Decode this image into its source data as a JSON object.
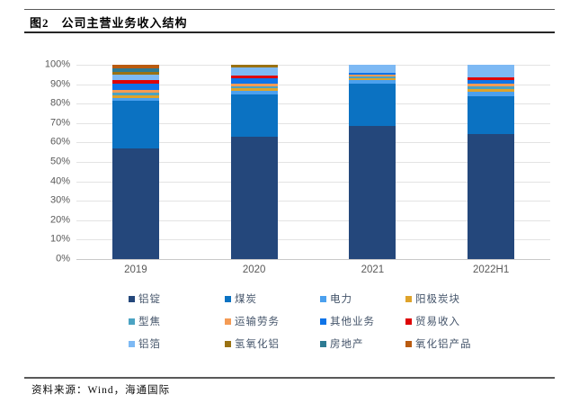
{
  "header": {
    "figure_label": "图2",
    "title": "公司主营业务收入结构"
  },
  "chart_data": {
    "type": "bar",
    "stacked": true,
    "title": "公司主营业务收入结构",
    "categories": [
      "2019",
      "2020",
      "2021",
      "2022H1"
    ],
    "series": [
      {
        "name": "铝锭",
        "color": "#24477B",
        "values": [
          57,
          63,
          68.5,
          64.5
        ]
      },
      {
        "name": "煤炭",
        "color": "#0B72C2",
        "values": [
          24.5,
          21.5,
          22,
          19.5
        ]
      },
      {
        "name": "电力",
        "color": "#4BA0EE",
        "values": [
          1.5,
          2,
          1.5,
          2
        ]
      },
      {
        "name": "阳极炭块",
        "color": "#DFA32B",
        "values": [
          1.5,
          1.5,
          1,
          1.5
        ]
      },
      {
        "name": "型焦",
        "color": "#4BA3C3",
        "values": [
          1,
          1,
          1,
          1.5
        ]
      },
      {
        "name": "运输劳务",
        "color": "#F49B55",
        "values": [
          1.5,
          1.5,
          1,
          1.5
        ]
      },
      {
        "name": "其他业务",
        "color": "#0E74E8",
        "values": [
          3.5,
          2.5,
          1,
          1.5
        ]
      },
      {
        "name": "贸易收入",
        "color": "#DE0506",
        "values": [
          1.5,
          1.5,
          0,
          1.5
        ]
      },
      {
        "name": "铝箔",
        "color": "#7DB9F4",
        "values": [
          3,
          4,
          4,
          6.5
        ]
      },
      {
        "name": "氢氧化铝",
        "color": "#9A7213",
        "values": [
          1.5,
          1.5,
          0,
          0
        ]
      },
      {
        "name": "房地产",
        "color": "#2E7B93",
        "values": [
          1.5,
          0,
          0,
          0
        ]
      },
      {
        "name": "氧化铝产品",
        "color": "#B95B10",
        "values": [
          2,
          0,
          0,
          0
        ]
      }
    ],
    "ylim": [
      0,
      100
    ],
    "y_tick_step": 10,
    "y_tick_suffix": "%",
    "grid": true,
    "legend_position": "bottom"
  },
  "footer": {
    "source": "资料来源：Wind，海通国际"
  }
}
